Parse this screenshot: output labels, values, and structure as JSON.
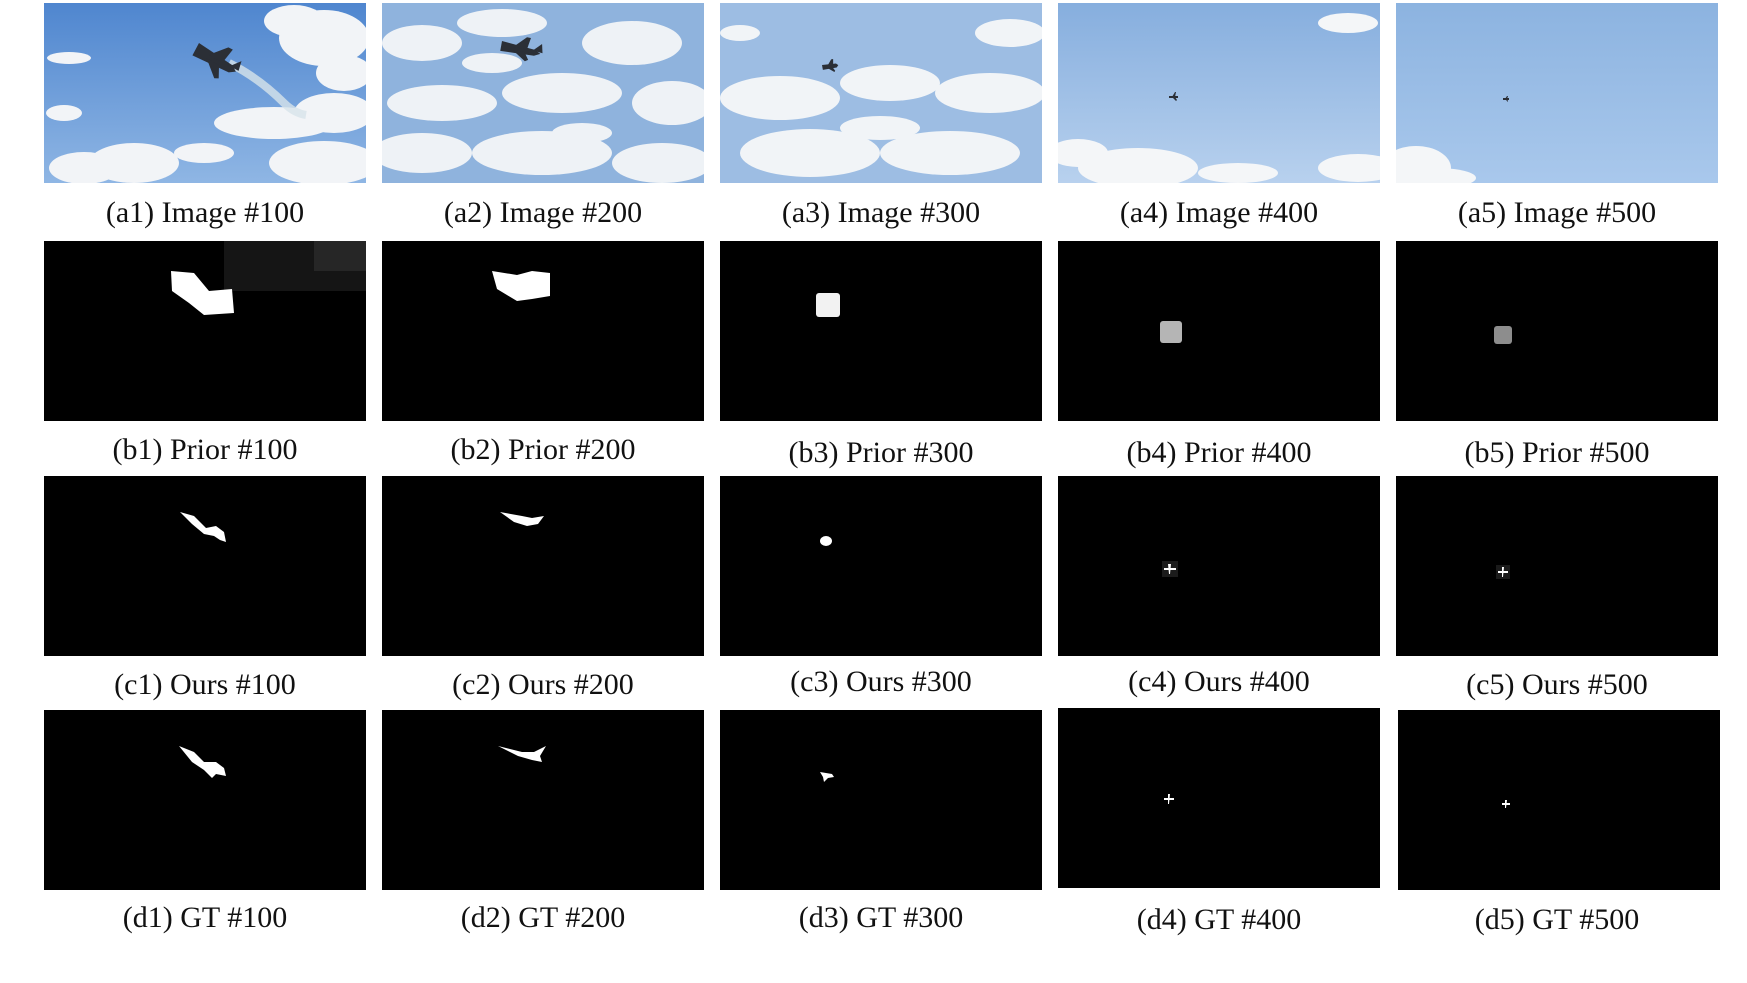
{
  "figure": {
    "rows": [
      {
        "type": "image",
        "panels": [
          {
            "caption": "(a1) Image #100",
            "target_size": "large"
          },
          {
            "caption": "(a2) Image #200",
            "target_size": "large"
          },
          {
            "caption": "(a3) Image #300",
            "target_size": "medium"
          },
          {
            "caption": "(a4) Image #400",
            "target_size": "small"
          },
          {
            "caption": "(a5) Image #500",
            "target_size": "tiny"
          }
        ]
      },
      {
        "type": "prior",
        "panels": [
          {
            "caption": "(b1) Prior #100",
            "intensity": 1.0
          },
          {
            "caption": "(b2) Prior #200",
            "intensity": 1.0
          },
          {
            "caption": "(b3) Prior #300",
            "intensity": 0.95
          },
          {
            "caption": "(b4) Prior #400",
            "intensity": 0.7
          },
          {
            "caption": "(b5) Prior #500",
            "intensity": 0.55
          }
        ]
      },
      {
        "type": "ours",
        "panels": [
          {
            "caption": "(c1) Ours #100"
          },
          {
            "caption": "(c2) Ours #200"
          },
          {
            "caption": "(c3) Ours #300"
          },
          {
            "caption": "(c4) Ours #400"
          },
          {
            "caption": "(c5) Ours #500"
          }
        ]
      },
      {
        "type": "gt",
        "panels": [
          {
            "caption": "(d1) GT #100"
          },
          {
            "caption": "(d2) GT #200"
          },
          {
            "caption": "(d3) GT #300"
          },
          {
            "caption": "(d4) GT #400"
          },
          {
            "caption": "(d5) GT #500"
          }
        ]
      }
    ]
  },
  "colors": {
    "sky_top": "#5f95d6",
    "sky_bottom": "#b9d4ee",
    "cloud": "#f4f6f8",
    "cloud_shadow": "#c9d5e2",
    "jet": "#2b2f36",
    "mask_bg": "#000000",
    "mask_fg": "#ffffff"
  }
}
